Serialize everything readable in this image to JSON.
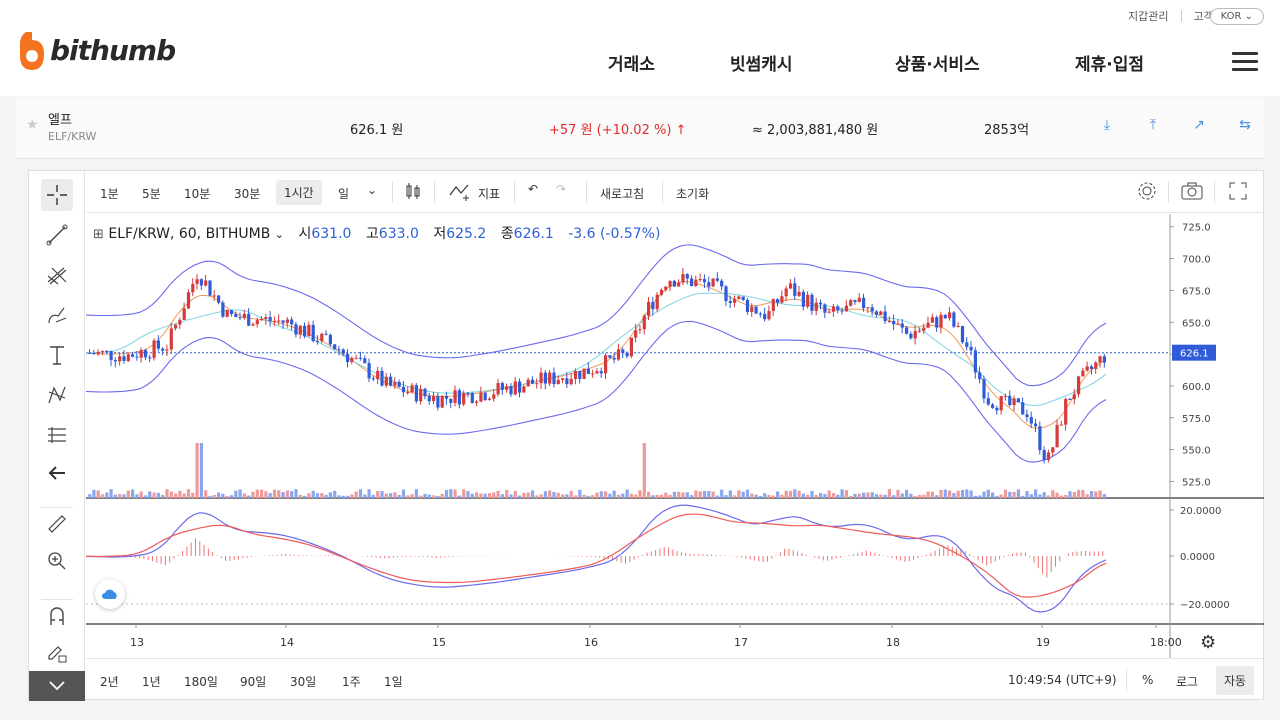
{
  "header": {
    "utility": [
      "지갑관리",
      "고객지원"
    ],
    "lang": "KOR",
    "logo_text": "bithumb",
    "nav": [
      "거래소",
      "빗썸캐시",
      "상품·서비스",
      "제휴·입점"
    ]
  },
  "ticker": {
    "name": "엘프",
    "pair": "ELF/KRW",
    "price": "626.1 원",
    "change": "+57 원 (+10.02 %)",
    "change_arrow": "↑",
    "volume": "≈ 2,003,881,480 원",
    "amount": "2853억"
  },
  "toolbar": {
    "timeframes": [
      "1분",
      "5분",
      "10분",
      "30분",
      "1시간",
      "일"
    ],
    "active_timeframe": "1시간",
    "indicator_label": "지표",
    "refresh": "새로고침",
    "reset": "초기화"
  },
  "legend": {
    "symbol": "ELF/KRW, 60, BITHUMB",
    "open_label": "시",
    "open": "631.0",
    "high_label": "고",
    "high": "633.0",
    "low_label": "저",
    "low": "625.2",
    "close_label": "종",
    "close": "626.1",
    "change": "-3.6 (-0.57%)"
  },
  "bottombar": {
    "ranges": [
      "2년",
      "1년",
      "180일",
      "90일",
      "30일",
      "1주",
      "1일"
    ],
    "time": "10:49:54 (UTC+9)",
    "percent": "%",
    "log": "로그",
    "auto": "자동"
  },
  "chart_data": {
    "type": "candlestick",
    "price_axis": [
      "725.0",
      "700.0",
      "675.0",
      "650.0",
      "625.0",
      "600.0",
      "575.0",
      "550.0",
      "525.0"
    ],
    "price_range": [
      512,
      735
    ],
    "current_price_label": "626.1",
    "macd_axis": [
      "20.0000",
      "0.0000",
      "-20.0000"
    ],
    "x_labels": [
      "13",
      "14",
      "15",
      "16",
      "17",
      "18",
      "19",
      "18:00"
    ],
    "colors": {
      "up": "#d63a3a",
      "down": "#2f5bd8",
      "bb": "#6b6bee",
      "ma_fast": "#f19a5b",
      "ma_slow": "#7fd3e0"
    }
  }
}
